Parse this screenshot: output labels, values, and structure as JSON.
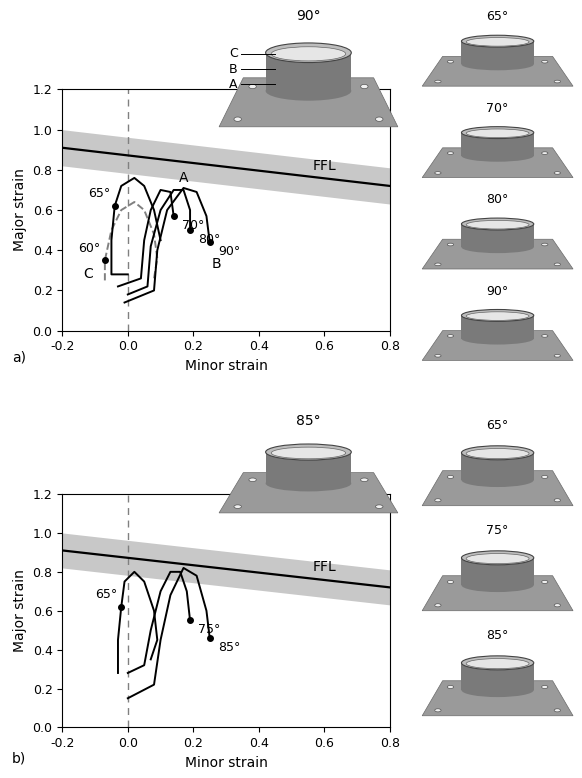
{
  "chart_data": [
    {
      "type": "line",
      "label": "a)",
      "x_label": "Minor strain",
      "y_label": "Major strain",
      "xlim": [
        -0.2,
        0.8
      ],
      "ylim": [
        0,
        1.2
      ],
      "xticks": [
        -0.2,
        {
          "value": 0,
          "label": "0.0"
        },
        0.2,
        0.4,
        0.6,
        0.8
      ],
      "yticks": [
        {
          "value": 0,
          "label": "0.0"
        },
        0.2,
        0.4,
        0.6,
        0.8,
        {
          "value": 1.0,
          "label": "1.0"
        },
        1.2
      ],
      "vline": 0,
      "ffl": {
        "name": "FFL",
        "x": [
          -0.2,
          0.8
        ],
        "values": [
          0.91,
          0.72
        ],
        "lower": [
          0.82,
          0.63
        ],
        "upper": [
          1.0,
          0.81
        ],
        "color": "#000000"
      },
      "series": [
        {
          "name": "60°",
          "color": "#808080",
          "line_style": "dashed",
          "x": [
            -0.07,
            -0.07,
            -0.05,
            -0.02,
            0.02,
            0.05,
            0.08,
            0.09,
            0.08
          ],
          "values": [
            0.25,
            0.35,
            0.5,
            0.6,
            0.64,
            0.6,
            0.48,
            0.36,
            0.26
          ],
          "point": {
            "x": -0.07,
            "y": 0.35
          }
        },
        {
          "name": "65°",
          "color": "#000000",
          "line_style": "solid",
          "x": [
            0.0,
            -0.05,
            -0.05,
            -0.04,
            -0.02,
            0.02,
            0.05,
            0.08,
            0.1
          ],
          "values": [
            0.28,
            0.28,
            0.45,
            0.62,
            0.72,
            0.76,
            0.72,
            0.6,
            0.45
          ],
          "point": {
            "x": -0.04,
            "y": 0.62
          }
        },
        {
          "name": "70°",
          "color": "#000000",
          "line_style": "solid",
          "x": [
            -0.03,
            0.04,
            0.05,
            0.07,
            0.1,
            0.13,
            0.14
          ],
          "values": [
            0.22,
            0.26,
            0.45,
            0.6,
            0.7,
            0.69,
            0.57
          ],
          "point": {
            "x": 0.14,
            "y": 0.57
          }
        },
        {
          "name": "80°",
          "color": "#000000",
          "line_style": "solid",
          "x": [
            0.0,
            0.06,
            0.07,
            0.1,
            0.14,
            0.17,
            0.19,
            0.19
          ],
          "values": [
            0.18,
            0.22,
            0.42,
            0.6,
            0.7,
            0.7,
            0.6,
            0.5
          ],
          "point": {
            "x": 0.19,
            "y": 0.5
          }
        },
        {
          "name": "90°",
          "color": "#000000",
          "line_style": "solid",
          "x": [
            -0.01,
            0.08,
            0.09,
            0.12,
            0.17,
            0.21,
            0.24,
            0.25
          ],
          "values": [
            0.14,
            0.2,
            0.4,
            0.6,
            0.71,
            0.69,
            0.57,
            0.44
          ],
          "point": {
            "x": 0.25,
            "y": 0.44
          }
        }
      ],
      "annotations": [
        {
          "text": "A",
          "x": 0.17,
          "y": 0.76
        },
        {
          "text": "B",
          "x": 0.27,
          "y": 0.33
        },
        {
          "text": "C",
          "x": -0.12,
          "y": 0.28
        }
      ],
      "images": {
        "main": "90°",
        "labels": [
          "C",
          "B",
          "A"
        ],
        "side": [
          "65°",
          "70°",
          "80°",
          "90°"
        ]
      }
    },
    {
      "type": "line",
      "label": "b)",
      "x_label": "Minor strain",
      "y_label": "Major strain",
      "xlim": [
        -0.2,
        0.8
      ],
      "ylim": [
        0,
        1.2
      ],
      "xticks": [
        -0.2,
        {
          "value": 0,
          "label": "0.0"
        },
        0.2,
        0.4,
        0.6,
        0.8
      ],
      "yticks": [
        {
          "value": 0,
          "label": "0.0"
        },
        0.2,
        0.4,
        0.6,
        0.8,
        {
          "value": 1.0,
          "label": "1.0"
        },
        1.2
      ],
      "vline": 0,
      "ffl": {
        "name": "FFL",
        "x": [
          -0.2,
          0.8
        ],
        "values": [
          0.91,
          0.72
        ],
        "lower": [
          0.82,
          0.63
        ],
        "upper": [
          1.0,
          0.81
        ],
        "color": "#000000"
      },
      "series": [
        {
          "name": "65°",
          "color": "#000000",
          "line_style": "solid",
          "x": [
            -0.03,
            -0.03,
            -0.02,
            -0.01,
            0.02,
            0.05,
            0.08,
            0.09,
            0.07
          ],
          "values": [
            0.28,
            0.45,
            0.62,
            0.75,
            0.8,
            0.75,
            0.6,
            0.45,
            0.35
          ],
          "point": {
            "x": -0.02,
            "y": 0.62
          }
        },
        {
          "name": "75°",
          "color": "#000000",
          "line_style": "solid",
          "x": [
            0.0,
            0.05,
            0.07,
            0.1,
            0.13,
            0.16,
            0.18,
            0.19
          ],
          "values": [
            0.28,
            0.32,
            0.5,
            0.7,
            0.8,
            0.8,
            0.7,
            0.55
          ],
          "point": {
            "x": 0.19,
            "y": 0.55
          }
        },
        {
          "name": "85°",
          "color": "#000000",
          "line_style": "solid",
          "x": [
            0.0,
            0.08,
            0.1,
            0.13,
            0.17,
            0.21,
            0.24,
            0.25
          ],
          "values": [
            0.15,
            0.22,
            0.45,
            0.68,
            0.82,
            0.78,
            0.6,
            0.46
          ],
          "point": {
            "x": 0.25,
            "y": 0.46
          }
        }
      ],
      "annotations": [],
      "images": {
        "main": "85°",
        "labels": [],
        "side": [
          "65°",
          "75°",
          "85°"
        ]
      }
    }
  ]
}
